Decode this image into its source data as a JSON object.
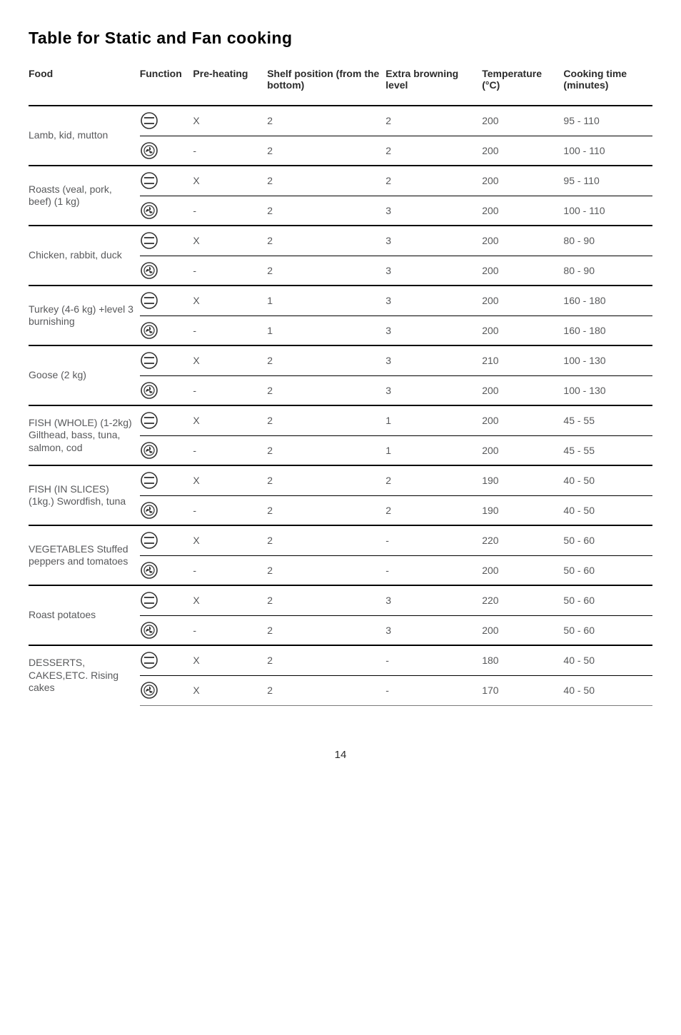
{
  "title": "Table for Static and Fan cooking",
  "page_number": "14",
  "headers": {
    "food": "Food",
    "function": "Function",
    "preheating": "Pre-heating",
    "shelf": "Shelf position (from the bottom)",
    "browning": "Extra browning level",
    "temp": "Temperature (°C)",
    "time": "Cooking time (minutes)"
  },
  "icons": {
    "static": "static",
    "fan": "fan"
  },
  "groups": [
    {
      "food": "Lamb, kid, mutton",
      "rows": [
        {
          "func": "static",
          "pre": "X",
          "shelf": "2",
          "brown": "2",
          "temp": "200",
          "time": "95 - 110"
        },
        {
          "func": "fan",
          "pre": "-",
          "shelf": "2",
          "brown": "2",
          "temp": "200",
          "time": "100 - 110"
        }
      ]
    },
    {
      "food": "Roasts (veal, pork, beef) (1 kg)",
      "rows": [
        {
          "func": "static",
          "pre": "X",
          "shelf": "2",
          "brown": "2",
          "temp": "200",
          "time": "95 - 110"
        },
        {
          "func": "fan",
          "pre": "-",
          "shelf": "2",
          "brown": "3",
          "temp": "200",
          "time": "100 - 110"
        }
      ]
    },
    {
      "food": "Chicken, rabbit, duck",
      "rows": [
        {
          "func": "static",
          "pre": "X",
          "shelf": "2",
          "brown": "3",
          "temp": "200",
          "time": "80 - 90"
        },
        {
          "func": "fan",
          "pre": "-",
          "shelf": "2",
          "brown": "3",
          "temp": "200",
          "time": "80 - 90"
        }
      ]
    },
    {
      "food": "Turkey (4-6 kg) +level 3 burnishing",
      "rows": [
        {
          "func": "static",
          "pre": "X",
          "shelf": "1",
          "brown": "3",
          "temp": "200",
          "time": "160 - 180"
        },
        {
          "func": "fan",
          "pre": "-",
          "shelf": "1",
          "brown": "3",
          "temp": "200",
          "time": "160 - 180"
        }
      ]
    },
    {
      "food": "Goose (2 kg)",
      "rows": [
        {
          "func": "static",
          "pre": "X",
          "shelf": "2",
          "brown": "3",
          "temp": "210",
          "time": "100 - 130"
        },
        {
          "func": "fan",
          "pre": "-",
          "shelf": "2",
          "brown": "3",
          "temp": "200",
          "time": "100 - 130"
        }
      ]
    },
    {
      "food": "FISH (WHOLE) (1-2kg) Gilthead, bass, tuna, salmon, cod",
      "rows": [
        {
          "func": "static",
          "pre": "X",
          "shelf": "2",
          "brown": "1",
          "temp": "200",
          "time": "45 - 55"
        },
        {
          "func": "fan",
          "pre": "-",
          "shelf": "2",
          "brown": "1",
          "temp": "200",
          "time": "45 - 55"
        }
      ]
    },
    {
      "food": "FISH (IN SLICES) (1kg.) Swordfish, tuna",
      "rows": [
        {
          "func": "static",
          "pre": "X",
          "shelf": "2",
          "brown": "2",
          "temp": "190",
          "time": "40 - 50"
        },
        {
          "func": "fan",
          "pre": "-",
          "shelf": "2",
          "brown": "2",
          "temp": "190",
          "time": "40 - 50"
        }
      ]
    },
    {
      "food": "VEGETABLES Stuffed peppers and tomatoes",
      "rows": [
        {
          "func": "static",
          "pre": "X",
          "shelf": "2",
          "brown": "-",
          "temp": "220",
          "time": "50 - 60"
        },
        {
          "func": "fan",
          "pre": "-",
          "shelf": "2",
          "brown": "-",
          "temp": "200",
          "time": "50 - 60"
        }
      ]
    },
    {
      "food": "Roast potatoes",
      "rows": [
        {
          "func": "static",
          "pre": "X",
          "shelf": "2",
          "brown": "3",
          "temp": "220",
          "time": "50 - 60"
        },
        {
          "func": "fan",
          "pre": "-",
          "shelf": "2",
          "brown": "3",
          "temp": "200",
          "time": "50 - 60"
        }
      ]
    },
    {
      "food": "DESSERTS, CAKES,ETC. Rising cakes",
      "rows": [
        {
          "func": "static",
          "pre": "X",
          "shelf": "2",
          "brown": "-",
          "temp": "180",
          "time": "40 - 50"
        },
        {
          "func": "fan",
          "pre": "X",
          "shelf": "2",
          "brown": "-",
          "temp": "170",
          "time": "40 - 50"
        }
      ]
    }
  ]
}
